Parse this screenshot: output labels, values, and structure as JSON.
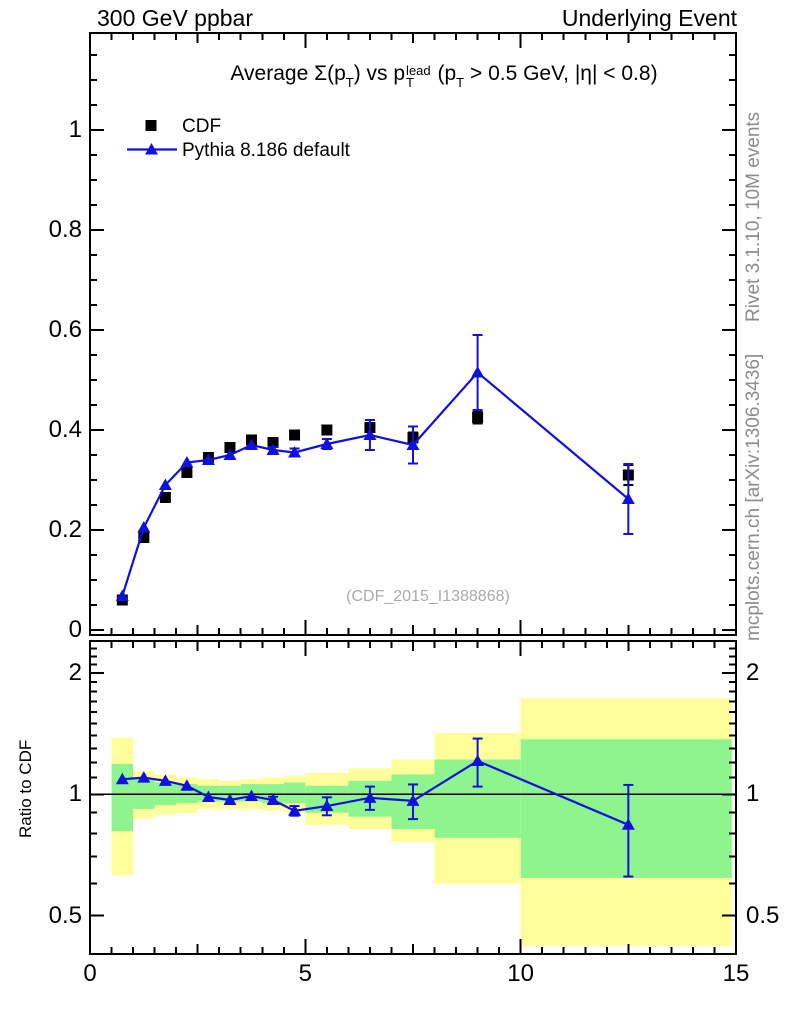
{
  "header": {
    "left": "300 GeV ppbar",
    "right": "Underlying Event"
  },
  "title_segments": [
    {
      "style": "plain",
      "text": "Average Σ(p"
    },
    {
      "style": "sub",
      "text": "T"
    },
    {
      "style": "plain",
      "text": ") vs p"
    },
    {
      "style": "stack",
      "sup": "lead",
      "sub": "T"
    },
    {
      "style": "plain",
      "text": " (p"
    },
    {
      "style": "sub",
      "text": "T"
    },
    {
      "style": "plain",
      "text": " > 0.5 GeV, |η| < 0.8)"
    }
  ],
  "legend": [
    {
      "label": "CDF",
      "marker": "black-square"
    },
    {
      "label": "Pythia 8.186 default",
      "marker": "blue-triangle-line"
    }
  ],
  "watermark": "(CDF_2015_I1388868)",
  "side_notes": {
    "top": "Rivet 3.1.10,  10M events",
    "bottom": "mcplots.cern.ch [arXiv:1306.3436]"
  },
  "colors": {
    "pythia_blue": "#1111dd",
    "cdf_black": "#000000",
    "band_yellow": "#ffff99",
    "band_green": "#8ef58e",
    "watermark_gray": "#aaaaaa",
    "side_note_gray": "#8c8c8c"
  },
  "chart_data": {
    "type": "line",
    "title": "Average Σ(pT) vs pT^lead (pT > 0.5 GeV, |η| < 0.8)",
    "xlim": [
      0,
      15
    ],
    "x_label_values": [
      0,
      5,
      10,
      15
    ],
    "x": [
      0.75,
      1.25,
      1.75,
      2.25,
      2.75,
      3.25,
      3.75,
      4.25,
      4.75,
      5.5,
      6.5,
      7.5,
      9,
      12.5
    ],
    "bin_edges": [
      0.5,
      1.0,
      1.5,
      2.0,
      2.5,
      3.0,
      3.5,
      4.0,
      4.5,
      5.0,
      6.0,
      7.0,
      8.0,
      10.0,
      14.9
    ],
    "main_panel": {
      "ylim": [
        -0.01,
        1.194
      ],
      "yticks": [
        0,
        0.2,
        0.4,
        0.6,
        0.8,
        1
      ],
      "ytick_labels": [
        "0",
        "0.2",
        "0.4",
        "0.6",
        "0.8",
        "1"
      ],
      "grid": false,
      "legend_position": "top-left",
      "series": [
        {
          "name": "CDF",
          "type": "scatter-square",
          "values": [
            0.06,
            0.185,
            0.265,
            0.315,
            0.345,
            0.365,
            0.38,
            0.375,
            0.39,
            0.4,
            0.405,
            0.385,
            0.425,
            0.31
          ],
          "errors": [
            0.002,
            0.003,
            0.004,
            0.004,
            0.005,
            0.005,
            0.005,
            0.005,
            0.006,
            0.006,
            0.008,
            0.01,
            0.012,
            0.02
          ]
        },
        {
          "name": "Pythia 8.186 default",
          "type": "line-triangle",
          "values": [
            0.068,
            0.205,
            0.29,
            0.335,
            0.34,
            0.35,
            0.37,
            0.36,
            0.355,
            0.372,
            0.39,
            0.37,
            0.515,
            0.262
          ],
          "errors": [
            0.001,
            0.002,
            0.002,
            0.003,
            0.003,
            0.003,
            0.004,
            0.006,
            0.008,
            0.01,
            0.03,
            0.037,
            0.075,
            0.07
          ]
        }
      ]
    },
    "ratio_panel": {
      "ylabel": "Ratio to CDF",
      "scale": "log",
      "ylim": [
        0.4,
        2.4
      ],
      "yticks": [
        0.5,
        1,
        2
      ],
      "ytick_labels": [
        "0.5",
        "1",
        "2"
      ],
      "minor_ticks": [
        0.6,
        0.7,
        0.8,
        0.9,
        1.1,
        1.2,
        1.3,
        1.4,
        1.5,
        1.6,
        1.7,
        1.8,
        1.9,
        2.1,
        2.2,
        2.3
      ],
      "unity_line": 1,
      "values": [
        1.09,
        1.1,
        1.08,
        1.05,
        0.985,
        0.968,
        0.99,
        0.968,
        0.91,
        0.935,
        0.98,
        0.963,
        1.21,
        0.84
      ],
      "errors": [
        0.006,
        0.007,
        0.008,
        0.009,
        0.01,
        0.01,
        0.012,
        0.018,
        0.025,
        0.048,
        0.065,
        0.095,
        0.165,
        0.215
      ],
      "band_yellow_lo": [
        0.63,
        0.87,
        0.89,
        0.9,
        0.92,
        0.92,
        0.92,
        0.91,
        0.9,
        0.84,
        0.82,
        0.76,
        0.6,
        0.42
      ],
      "band_yellow_hi": [
        1.38,
        1.14,
        1.12,
        1.1,
        1.09,
        1.08,
        1.09,
        1.1,
        1.11,
        1.13,
        1.16,
        1.22,
        1.42,
        1.73
      ],
      "band_green_lo": [
        0.81,
        0.92,
        0.94,
        0.95,
        0.96,
        0.96,
        0.96,
        0.95,
        0.95,
        0.9,
        0.88,
        0.82,
        0.78,
        0.62
      ],
      "band_green_hi": [
        1.19,
        1.09,
        1.07,
        1.06,
        1.05,
        1.05,
        1.06,
        1.06,
        1.07,
        1.05,
        1.08,
        1.12,
        1.22,
        1.37
      ]
    }
  }
}
